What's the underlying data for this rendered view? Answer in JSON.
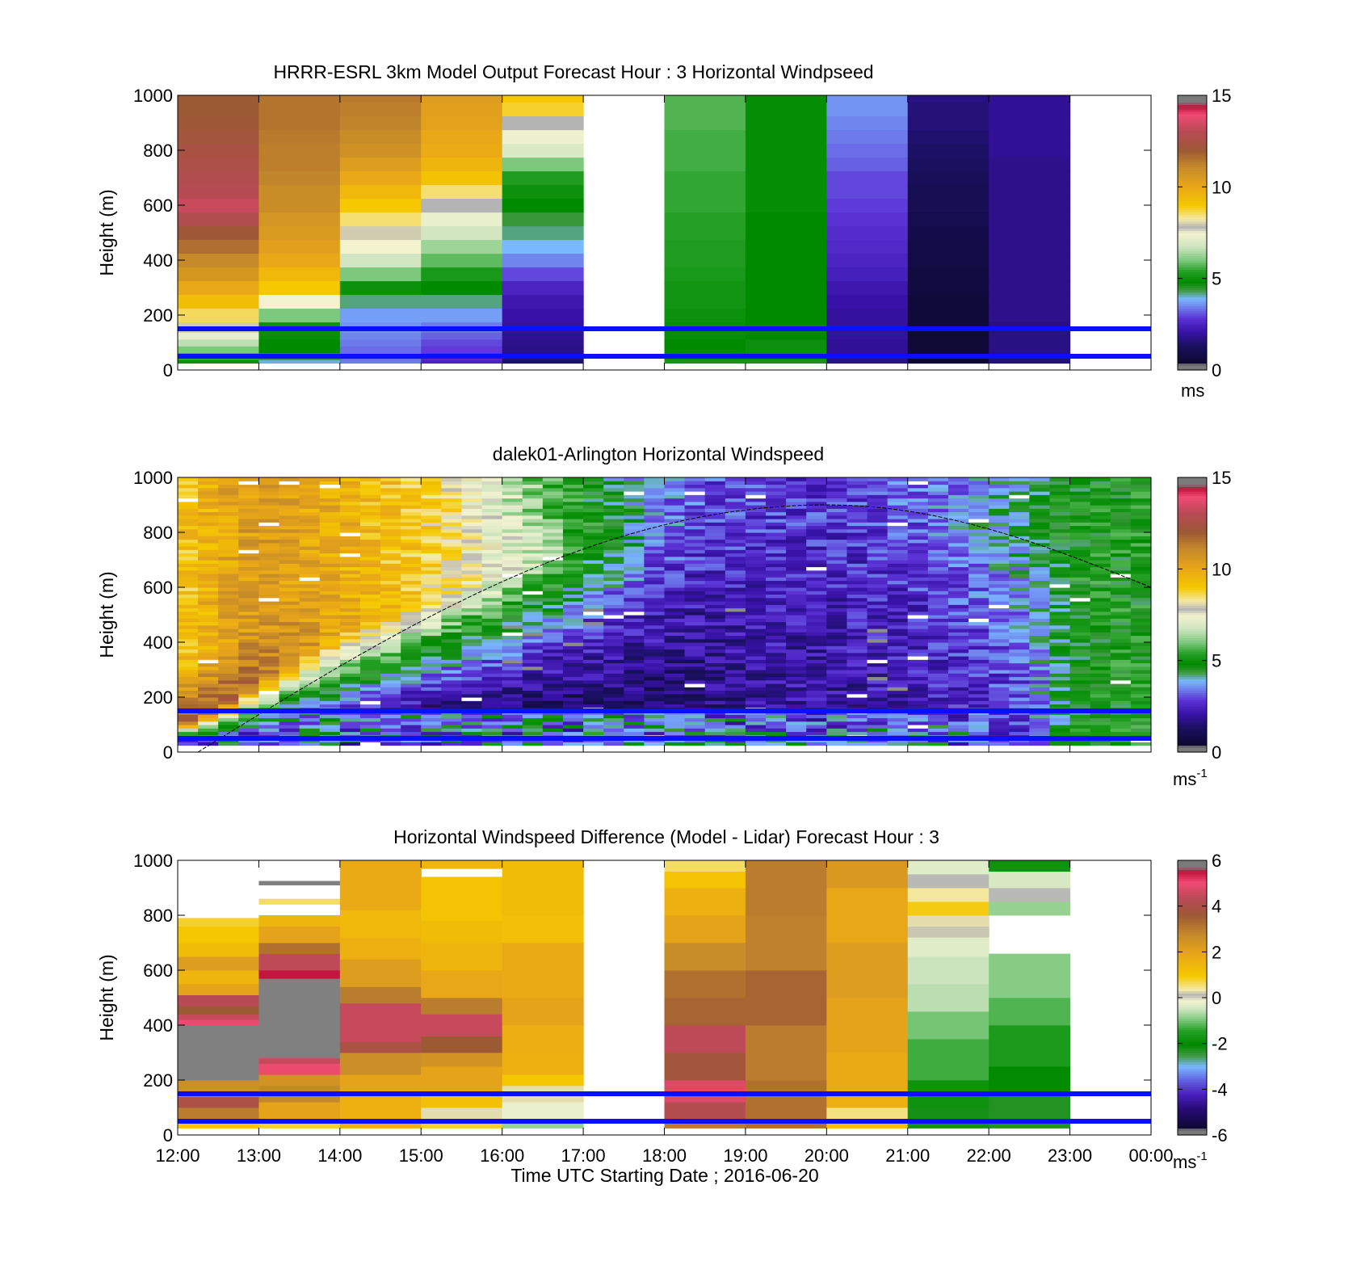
{
  "time_ticks": [
    "12:00",
    "13:00",
    "14:00",
    "15:00",
    "16:00",
    "17:00",
    "18:00",
    "19:00",
    "20:00",
    "21:00",
    "22:00",
    "23:00",
    "00:00"
  ],
  "xlabel": "Time UTC  Starting Date ; 2016-06-20",
  "chart_data": [
    {
      "type": "heatmap",
      "title": "HRRR-ESRL 3km Model Output   Forecast Hour : 3 Horizontal Windpseed",
      "xlabel": "",
      "ylabel": "Height (m)",
      "yticks": [
        "0",
        "200",
        "400",
        "600",
        "800",
        "1000"
      ],
      "xlim": [
        12,
        24
      ],
      "ylim": [
        0,
        1000
      ],
      "x_hours": [
        12,
        13,
        14,
        15,
        16,
        17,
        18,
        19,
        20,
        21,
        22,
        23
      ],
      "y_levels": [
        25,
        50,
        75,
        100,
        125,
        150,
        200,
        250,
        300,
        350,
        400,
        450,
        500,
        550,
        600,
        650,
        700,
        750,
        800,
        850,
        900,
        950,
        1000
      ],
      "missing_hours": [
        17,
        23
      ],
      "values_ms": [
        [
          5.0,
          5.5,
          6.0,
          6.6,
          7.3,
          8.0,
          8.6,
          9.3,
          10.0,
          10.6,
          11.1,
          11.6,
          12.1,
          12.8,
          13.3,
          13.0,
          12.8,
          12.6,
          12.5,
          12.3,
          12.1,
          12.0,
          12.0
        ],
        [
          4.0,
          4.4,
          4.8,
          4.8,
          4.9,
          5.0,
          6.0,
          7.5,
          9.0,
          9.5,
          10.0,
          10.3,
          10.5,
          10.7,
          11.0,
          11.0,
          11.2,
          11.3,
          11.3,
          11.4,
          11.5,
          11.5,
          11.5
        ],
        [
          3.4,
          3.3,
          3.3,
          3.4,
          3.5,
          3.6,
          3.7,
          4.2,
          5.0,
          6.0,
          6.8,
          7.5,
          8.0,
          8.5,
          9.0,
          9.5,
          10.0,
          10.4,
          10.8,
          11.0,
          11.2,
          11.3,
          11.4
        ],
        [
          2.5,
          2.7,
          2.9,
          3.0,
          3.2,
          3.4,
          3.7,
          4.2,
          4.8,
          5.2,
          5.8,
          6.3,
          6.8,
          7.3,
          7.8,
          8.5,
          9.2,
          9.6,
          9.9,
          10.0,
          10.2,
          10.3,
          10.4
        ],
        [
          1.5,
          1.6,
          1.7,
          1.8,
          1.9,
          2.0,
          2.1,
          2.2,
          2.5,
          3.0,
          3.5,
          3.9,
          4.2,
          4.4,
          4.8,
          5.0,
          5.3,
          6.0,
          7.0,
          7.4,
          7.8,
          8.8,
          9.0
        ],
        [],
        [
          4.6,
          4.7,
          4.8,
          4.8,
          4.9,
          4.9,
          5.0,
          5.1,
          5.1,
          5.2,
          5.3,
          5.3,
          5.4,
          5.4,
          5.5,
          5.5,
          5.5,
          5.6,
          5.6,
          5.6,
          5.7,
          5.7,
          5.7
        ],
        [
          4.6,
          4.7,
          4.7,
          4.7,
          4.8,
          4.8,
          4.8,
          4.8,
          4.8,
          4.8,
          4.8,
          4.8,
          4.8,
          4.8,
          4.9,
          4.9,
          4.9,
          4.9,
          4.9,
          4.9,
          4.9,
          4.9,
          4.9
        ],
        [
          1.8,
          1.8,
          1.9,
          1.9,
          2.0,
          2.0,
          2.0,
          2.1,
          2.2,
          2.4,
          2.5,
          2.6,
          2.7,
          2.8,
          2.9,
          3.0,
          3.0,
          3.2,
          3.3,
          3.4,
          3.5,
          3.6,
          3.6
        ],
        [
          0.4,
          0.5,
          0.5,
          0.5,
          0.5,
          0.6,
          0.6,
          0.6,
          0.7,
          0.7,
          0.8,
          0.8,
          0.9,
          1.0,
          1.1,
          1.1,
          1.2,
          1.3,
          1.4,
          1.5,
          1.6,
          1.6,
          1.7
        ],
        [
          1.6,
          1.6,
          1.7,
          1.7,
          1.7,
          1.7,
          1.8,
          1.8,
          1.8,
          1.8,
          1.8,
          1.8,
          1.8,
          1.8,
          1.8,
          1.8,
          1.8,
          1.8,
          1.9,
          1.9,
          1.9,
          1.9,
          1.9
        ],
        []
      ],
      "reference_lines_m": [
        50,
        150
      ],
      "colorbar": {
        "min": 0,
        "max": 15,
        "ticks": [
          "0",
          "5",
          "10",
          "15"
        ],
        "unit": "ms"
      }
    },
    {
      "type": "heatmap",
      "title": "dalek01-Arlington  Horizontal Windspeed",
      "xlabel": "",
      "ylabel": "Height (m)",
      "yticks": [
        "0",
        "200",
        "400",
        "600",
        "800",
        "1000"
      ],
      "xlim": [
        12,
        24
      ],
      "ylim": [
        0,
        1000
      ],
      "time_step_h": 0.25,
      "time_start": 12.0,
      "time_end": 23.85,
      "height_step_m": 12.5,
      "jet_center_m": [
        80,
        150,
        250,
        350,
        430,
        480,
        540,
        600,
        650,
        700,
        740,
        780,
        820,
        840,
        860,
        870,
        875,
        880,
        880,
        870,
        860,
        830,
        760,
        640,
        560
      ],
      "jet_peak_ms": [
        11.5,
        12.0,
        11.5,
        10.8,
        10.0,
        9.5,
        9.0,
        8.2,
        7.5,
        6.5,
        5.5,
        4.5,
        3.5,
        3.0,
        3.0,
        2.8,
        2.8,
        3.0,
        3.2,
        3.5,
        4.0,
        4.6,
        5.0,
        5.0,
        5.0
      ],
      "upper_ms": [
        9.0,
        10.0,
        10.5,
        10.2,
        9.8,
        9.3,
        9.0,
        8.0,
        7.0,
        5.8,
        4.8,
        4.0,
        3.4,
        3.0,
        2.8,
        2.7,
        2.7,
        2.8,
        3.0,
        3.2,
        3.6,
        4.2,
        4.8,
        5.0,
        5.0
      ],
      "low_ms": [
        2.6,
        2.3,
        2.0,
        1.8,
        1.6,
        1.4,
        1.2,
        1.1,
        1.0,
        1.0,
        1.1,
        1.2,
        1.4,
        1.6,
        1.8,
        2.0,
        2.0,
        2.1,
        2.2,
        2.4,
        2.6,
        3.0,
        4.8,
        5.0,
        5.0
      ],
      "boundary_layer_curve": {
        "start_h": 12.25,
        "end_h": 24.0,
        "peak_h": 20.0,
        "peak_m": 900,
        "end_m": 600
      },
      "reference_lines_m": [
        50,
        150
      ],
      "colorbar": {
        "min": 0,
        "max": 15,
        "ticks": [
          "0",
          "5",
          "10",
          "15"
        ],
        "unit": "ms",
        "unit_sup": "-1"
      }
    },
    {
      "type": "heatmap",
      "title": "Horizontal Windspeed Difference (Model - Lidar) Forecast Hour : 3",
      "xlabel": "Time UTC  Starting Date ; 2016-06-20",
      "ylabel": "Height (m)",
      "yticks": [
        "0",
        "200",
        "400",
        "600",
        "800",
        "1000"
      ],
      "xlim": [
        12,
        24
      ],
      "ylim": [
        0,
        1000
      ],
      "x_hours": [
        12,
        13,
        14,
        15,
        16,
        17,
        18,
        19,
        20,
        21,
        22,
        23
      ],
      "missing_hours": [
        17,
        23
      ],
      "bands": [
        [
          [
            25,
            60,
            1.0
          ],
          [
            60,
            100,
            3.0
          ],
          [
            100,
            140,
            4.0
          ],
          [
            140,
            200,
            2.6
          ],
          [
            200,
            400,
            99
          ],
          [
            400,
            420,
            5.0
          ],
          [
            420,
            440,
            4.5
          ],
          [
            440,
            470,
            3.6
          ],
          [
            470,
            510,
            4.3
          ],
          [
            510,
            550,
            2.0
          ],
          [
            550,
            600,
            1.5
          ],
          [
            600,
            650,
            2.2
          ],
          [
            650,
            700,
            1.3
          ],
          [
            700,
            760,
            1.0
          ],
          [
            760,
            790,
            0.8
          ]
        ],
        [
          [
            25,
            60,
            0.8
          ],
          [
            60,
            120,
            2.0
          ],
          [
            120,
            180,
            2.8
          ],
          [
            180,
            220,
            2.5
          ],
          [
            220,
            260,
            5.0
          ],
          [
            260,
            280,
            4.5
          ],
          [
            280,
            570,
            99
          ],
          [
            570,
            600,
            5.5
          ],
          [
            600,
            660,
            4.4
          ],
          [
            660,
            700,
            3.2
          ],
          [
            700,
            760,
            2.0
          ],
          [
            760,
            800,
            1.5
          ],
          [
            840,
            860,
            0.6
          ],
          [
            910,
            925,
            99
          ]
        ],
        [
          [
            25,
            150,
            1.6
          ],
          [
            150,
            220,
            2.0
          ],
          [
            220,
            300,
            2.6
          ],
          [
            300,
            340,
            4.0
          ],
          [
            340,
            480,
            4.5
          ],
          [
            480,
            540,
            3.0
          ],
          [
            540,
            640,
            2.2
          ],
          [
            640,
            720,
            1.6
          ],
          [
            720,
            820,
            1.4
          ],
          [
            820,
            1000,
            1.8
          ]
        ],
        [
          [
            25,
            60,
            0.8
          ],
          [
            60,
            100,
            0.3
          ],
          [
            100,
            150,
            1.2
          ],
          [
            150,
            250,
            2.0
          ],
          [
            250,
            300,
            2.5
          ],
          [
            300,
            360,
            3.6
          ],
          [
            360,
            440,
            4.5
          ],
          [
            440,
            500,
            3.0
          ],
          [
            500,
            600,
            1.9
          ],
          [
            600,
            700,
            1.5
          ],
          [
            700,
            780,
            1.3
          ],
          [
            780,
            940,
            1.1
          ],
          [
            970,
            1000,
            1.5
          ]
        ],
        [
          [
            25,
            60,
            -0.8
          ],
          [
            60,
            120,
            -0.2
          ],
          [
            120,
            180,
            0.3
          ],
          [
            180,
            220,
            1.0
          ],
          [
            220,
            300,
            1.6
          ],
          [
            300,
            400,
            1.7
          ],
          [
            400,
            500,
            2.0
          ],
          [
            500,
            700,
            1.8
          ],
          [
            700,
            800,
            1.2
          ],
          [
            800,
            1000,
            1.3
          ]
        ],
        [],
        [
          [
            25,
            60,
            3.0
          ],
          [
            60,
            120,
            4.2
          ],
          [
            120,
            200,
            4.8
          ],
          [
            200,
            300,
            3.8
          ],
          [
            300,
            400,
            4.4
          ],
          [
            400,
            500,
            3.4
          ],
          [
            500,
            600,
            3.2
          ],
          [
            600,
            700,
            2.7
          ],
          [
            700,
            800,
            2.0
          ],
          [
            800,
            900,
            1.6
          ],
          [
            900,
            960,
            1.1
          ],
          [
            960,
            1000,
            0.6
          ]
        ],
        [
          [
            25,
            200,
            3.2
          ],
          [
            200,
            400,
            3.0
          ],
          [
            400,
            600,
            3.4
          ],
          [
            600,
            800,
            2.9
          ],
          [
            800,
            1000,
            3.0
          ]
        ],
        [
          [
            25,
            60,
            1.2
          ],
          [
            60,
            100,
            0.5
          ],
          [
            100,
            150,
            1.6
          ],
          [
            150,
            300,
            1.8
          ],
          [
            300,
            500,
            2.0
          ],
          [
            500,
            700,
            2.2
          ],
          [
            700,
            900,
            1.9
          ],
          [
            900,
            1000,
            2.3
          ]
        ],
        [
          [
            25,
            100,
            -2.2
          ],
          [
            100,
            200,
            -1.8
          ],
          [
            200,
            350,
            -1.3
          ],
          [
            350,
            450,
            -1.0
          ],
          [
            450,
            550,
            -0.6
          ],
          [
            550,
            650,
            -0.5
          ],
          [
            650,
            720,
            -0.3
          ],
          [
            720,
            760,
            0.2
          ],
          [
            760,
            800,
            0.3
          ],
          [
            800,
            850,
            0.9
          ],
          [
            850,
            900,
            0.4
          ],
          [
            900,
            950,
            0.1
          ],
          [
            950,
            1000,
            -0.3
          ]
        ],
        [
          [
            25,
            150,
            -2.3
          ],
          [
            150,
            250,
            -2.0
          ],
          [
            250,
            400,
            -1.6
          ],
          [
            400,
            500,
            -1.2
          ],
          [
            500,
            660,
            -0.9
          ],
          [
            800,
            850,
            -0.8
          ],
          [
            850,
            900,
            0.1
          ],
          [
            900,
            960,
            -0.4
          ],
          [
            960,
            1000,
            -1.8
          ]
        ],
        []
      ],
      "reference_lines_m": [
        50,
        150
      ],
      "colorbar": {
        "min": -6,
        "max": 6,
        "ticks": [
          "-6",
          "-4",
          "-2",
          "0",
          "2",
          "4",
          "6"
        ],
        "unit": "ms",
        "unit_sup": "-1"
      }
    }
  ]
}
